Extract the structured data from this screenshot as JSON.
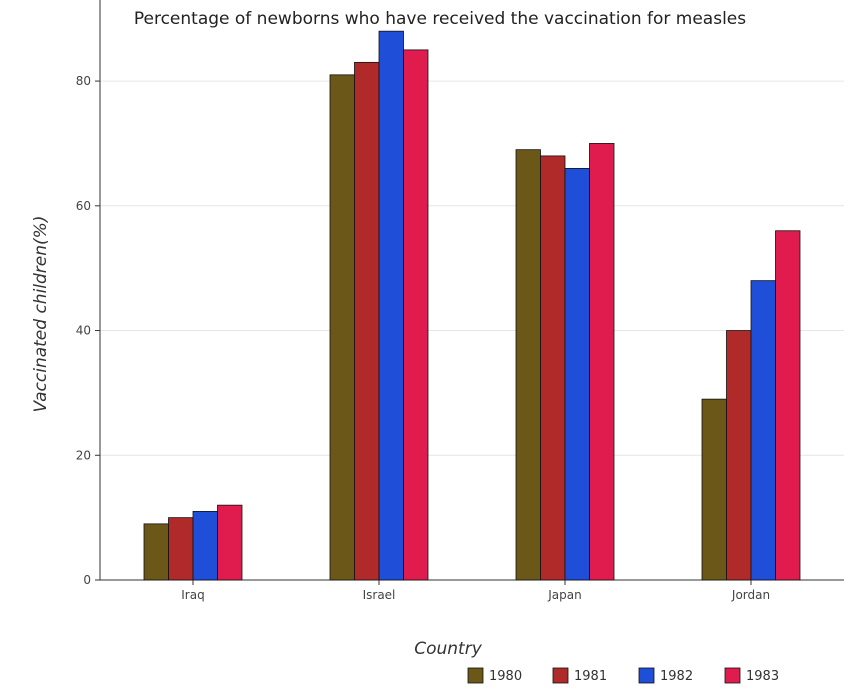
{
  "title": "Percentage of newborns who have received the vaccination for measles",
  "colors": {
    "1980": "#6b5818",
    "1981": "#b12a2a",
    "1982": "#1f4ed8",
    "1983": "#e01c4e",
    "grid": "#e6e6e6",
    "axis": "#333333"
  },
  "chart_data": {
    "type": "bar",
    "title": "Percentage of newborns who have received the vaccination for measles",
    "xlabel": "Country",
    "ylabel": "Vaccinated children(%)",
    "categories": [
      "Iraq",
      "Israel",
      "Japan",
      "Jordan"
    ],
    "series": [
      {
        "name": "1980",
        "values": [
          9,
          81,
          69,
          29
        ]
      },
      {
        "name": "1981",
        "values": [
          10,
          83,
          68,
          40
        ]
      },
      {
        "name": "1982",
        "values": [
          11,
          88,
          66,
          48
        ]
      },
      {
        "name": "1983",
        "values": [
          12,
          85,
          70,
          56
        ]
      }
    ],
    "ylim": [
      0,
      93
    ],
    "yticks": [
      0,
      20,
      40,
      60,
      80
    ],
    "grid": true,
    "legend_position": "bottom-right"
  }
}
